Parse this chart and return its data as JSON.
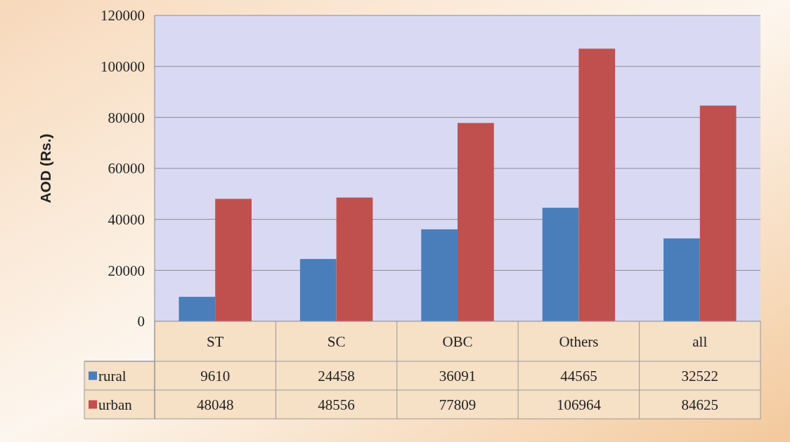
{
  "chart_data": {
    "type": "bar",
    "ylabel": "AOD (Rs.)",
    "categories": [
      "ST",
      "SC",
      "OBC",
      "Others",
      "all"
    ],
    "series": [
      {
        "name": "rural",
        "color": "#4a7ebb",
        "values": [
          9610,
          24458,
          36091,
          44565,
          32522
        ]
      },
      {
        "name": "urban",
        "color": "#c0504d",
        "values": [
          48048,
          48556,
          77809,
          106964,
          84625
        ]
      }
    ],
    "ylim": [
      0,
      120000
    ],
    "yticks": [
      0,
      20000,
      40000,
      60000,
      80000,
      100000,
      120000
    ],
    "grid": "y",
    "legend": "bottom left",
    "data_labels": true
  }
}
